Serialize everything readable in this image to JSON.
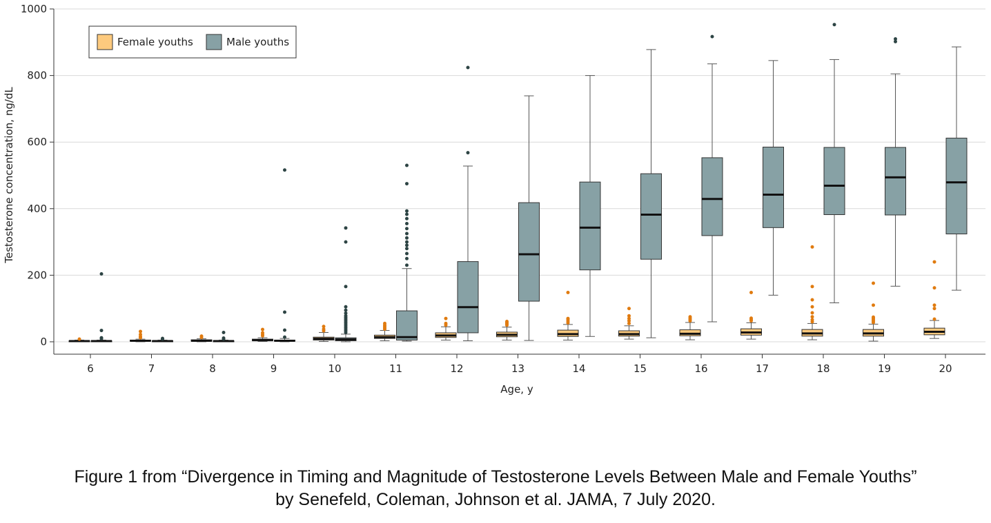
{
  "chart_data": {
    "type": "boxplot",
    "xlabel": "Age, y",
    "ylabel": "Testosterone concentration, ng/dL",
    "ylim": [
      0,
      1000
    ],
    "yticks": [
      "0",
      "200",
      "400",
      "600",
      "800",
      "1000"
    ],
    "yticks_values": [
      0,
      200,
      400,
      600,
      800,
      1000
    ],
    "grid": "horizontal",
    "legend_position": "top-left",
    "categories": [
      "6",
      "7",
      "8",
      "9",
      "10",
      "11",
      "12",
      "13",
      "14",
      "15",
      "16",
      "17",
      "18",
      "19",
      "20"
    ],
    "series": [
      {
        "name": "Female youths",
        "color": "#fdca7e",
        "outlier_color": "#e07b10",
        "boxes": [
          {
            "min": 0,
            "q1": 1,
            "median": 2,
            "q3": 3,
            "max": 5,
            "outliers": [
              8
            ]
          },
          {
            "min": 0,
            "q1": 2,
            "median": 3,
            "q3": 5,
            "max": 8,
            "outliers": [
              12,
              16,
              22,
              31
            ]
          },
          {
            "min": 0,
            "q1": 2,
            "median": 3,
            "q3": 6,
            "max": 9,
            "outliers": [
              13,
              17
            ]
          },
          {
            "min": 1,
            "q1": 3,
            "median": 5,
            "q3": 8,
            "max": 12,
            "outliers": [
              18,
              22,
              27,
              37
            ]
          },
          {
            "min": 1,
            "q1": 5,
            "median": 9,
            "q3": 14,
            "max": 28,
            "outliers": [
              33,
              38,
              46
            ]
          },
          {
            "min": 3,
            "q1": 10,
            "median": 14,
            "q3": 20,
            "max": 34,
            "outliers": [
              38,
              42,
              46,
              50,
              55
            ]
          },
          {
            "min": 5,
            "q1": 13,
            "median": 19,
            "q3": 27,
            "max": 45,
            "outliers": [
              50,
              55,
              70
            ]
          },
          {
            "min": 5,
            "q1": 15,
            "median": 21,
            "q3": 29,
            "max": 44,
            "outliers": [
              50,
              53,
              56,
              58,
              61
            ]
          },
          {
            "min": 5,
            "q1": 16,
            "median": 23,
            "q3": 35,
            "max": 52,
            "outliers": [
              57,
              62,
              67,
              70,
              148
            ]
          },
          {
            "min": 8,
            "q1": 17,
            "median": 23,
            "q3": 33,
            "max": 48,
            "outliers": [
              55,
              63,
              70,
              78,
              100
            ]
          },
          {
            "min": 6,
            "q1": 18,
            "median": 24,
            "q3": 36,
            "max": 58,
            "outliers": [
              63,
              67,
              71,
              75
            ]
          },
          {
            "min": 8,
            "q1": 20,
            "median": 28,
            "q3": 39,
            "max": 57,
            "outliers": [
              63,
              67,
              71,
              148
            ]
          },
          {
            "min": 6,
            "q1": 17,
            "median": 25,
            "q3": 37,
            "max": 55,
            "outliers": [
              60,
              66,
              75,
              87,
              105,
              126,
              166,
              285
            ]
          },
          {
            "min": 2,
            "q1": 17,
            "median": 25,
            "q3": 37,
            "max": 53,
            "outliers": [
              58,
              62,
              66,
              70,
              74,
              110,
              176
            ]
          },
          {
            "min": 10,
            "q1": 21,
            "median": 30,
            "q3": 41,
            "max": 64,
            "outliers": [
              68,
              100,
              110,
              162,
              240
            ]
          }
        ]
      },
      {
        "name": "Male youths",
        "color": "#87a1a5",
        "outlier_color": "#2d4444",
        "boxes": [
          {
            "min": 0,
            "q1": 1,
            "median": 2,
            "q3": 3,
            "max": 5,
            "outliers": [
              9,
              12,
              34,
              204
            ]
          },
          {
            "min": 0,
            "q1": 1,
            "median": 2,
            "q3": 3,
            "max": 5,
            "outliers": [
              8,
              10
            ]
          },
          {
            "min": 0,
            "q1": 1,
            "median": 2,
            "q3": 3,
            "max": 5,
            "outliers": [
              8,
              11,
              28
            ]
          },
          {
            "min": 0,
            "q1": 2,
            "median": 3,
            "q3": 5,
            "max": 10,
            "outliers": [
              14,
              35,
              89,
              516
            ]
          },
          {
            "min": 0,
            "q1": 3,
            "median": 7,
            "q3": 12,
            "max": 23,
            "outliers": [
              28,
              33,
              38,
              43,
              48,
              53,
              58,
              63,
              68,
              73,
              78,
              86,
              95,
              105,
              166,
              300,
              342
            ]
          },
          {
            "min": 2,
            "q1": 5,
            "median": 14,
            "q3": 93,
            "max": 220,
            "outliers": [
              230,
              250,
              265,
              280,
              290,
              300,
              312,
              325,
              340,
              355,
              370,
              383,
              393,
              475,
              530
            ]
          },
          {
            "min": 3,
            "q1": 27,
            "median": 104,
            "q3": 241,
            "max": 528,
            "outliers": [
              568,
              824
            ]
          },
          {
            "min": 4,
            "q1": 122,
            "median": 263,
            "q3": 418,
            "max": 739,
            "outliers": []
          },
          {
            "min": 16,
            "q1": 216,
            "median": 343,
            "q3": 480,
            "max": 800,
            "outliers": []
          },
          {
            "min": 12,
            "q1": 248,
            "median": 382,
            "q3": 505,
            "max": 878,
            "outliers": []
          },
          {
            "min": 60,
            "q1": 319,
            "median": 429,
            "q3": 553,
            "max": 835,
            "outliers": [
              917
            ]
          },
          {
            "min": 140,
            "q1": 343,
            "median": 442,
            "q3": 585,
            "max": 845,
            "outliers": []
          },
          {
            "min": 117,
            "q1": 382,
            "median": 469,
            "q3": 584,
            "max": 848,
            "outliers": [
              953
            ]
          },
          {
            "min": 167,
            "q1": 381,
            "median": 494,
            "q3": 584,
            "max": 805,
            "outliers": [
              902,
              910
            ]
          },
          {
            "min": 155,
            "q1": 324,
            "median": 479,
            "q3": 612,
            "max": 886,
            "outliers": []
          }
        ]
      }
    ]
  },
  "caption": {
    "line1": "Figure 1 from “Divergence in Timing and Magnitude of Testosterone Levels Between Male and Female Youths”",
    "line2": "by Senefeld, Coleman, Johnson et al. JAMA, 7 July 2020."
  }
}
